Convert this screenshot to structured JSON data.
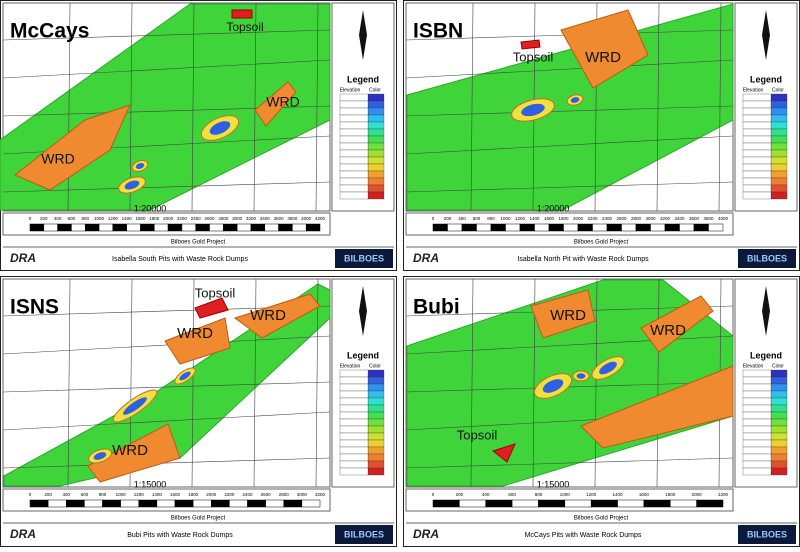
{
  "panels": [
    {
      "title": "McCays",
      "labels": [
        "Topsoil",
        "WRD",
        "WRD"
      ],
      "legend": "Legend",
      "legend_header": [
        "Elevation",
        "Color"
      ],
      "scale": "1:20000",
      "scale_ticks": [
        0,
        200,
        400,
        600,
        800,
        1000,
        1200,
        1400,
        1600,
        1800,
        2000,
        2200,
        2400,
        2600,
        2800,
        3000,
        3200,
        3400,
        3600,
        3800,
        4000,
        4200
      ],
      "project": "Bilboes Gold Project",
      "caption": "Isabella South Pits with Waste Rock Dumps",
      "logo": "DRA",
      "brand": "BILBOES"
    },
    {
      "title": "ISBN",
      "labels": [
        "Topsoil",
        "WRD"
      ],
      "legend": "Legend",
      "legend_header": [
        "Elevation",
        "Color"
      ],
      "scale": "1:20000",
      "scale_ticks": [
        0,
        200,
        400,
        600,
        800,
        1000,
        1200,
        1400,
        1600,
        1800,
        2000,
        2200,
        2400,
        2600,
        2800,
        3000,
        3200,
        3400,
        3600,
        3800,
        4000
      ],
      "project": "Bilboes Gold Project",
      "caption": "Isabella North Pit with Waste Rock Dumps",
      "logo": "DRA",
      "brand": "BILBOES"
    },
    {
      "title": "ISNS",
      "labels": [
        "Topsoil",
        "WRD",
        "WRD",
        "WRD"
      ],
      "legend": "Legend",
      "legend_header": [
        "Elevation",
        "Color"
      ],
      "scale": "1:15000",
      "scale_ticks": [
        0,
        200,
        400,
        600,
        800,
        1000,
        1200,
        1400,
        1600,
        1800,
        2000,
        2200,
        2400,
        2600,
        2800,
        3000,
        3200
      ],
      "project": "Bilboes Gold Project",
      "caption": "Bubi Pits with Waste Rock Dumps",
      "logo": "DRA",
      "brand": "BILBOES"
    },
    {
      "title": "Bubi",
      "labels": [
        "WRD",
        "WRD",
        "Topsoil"
      ],
      "legend": "Legend",
      "legend_header": [
        "Elevation",
        "Color"
      ],
      "scale": "1:15000",
      "scale_ticks": [
        0,
        200,
        400,
        600,
        800,
        1000,
        1200,
        1400,
        1600,
        1800,
        2000,
        2200
      ],
      "project": "Bilboes Gold Project",
      "caption": "McCays Pits with Waste Rock Dumps",
      "logo": "DRA",
      "brand": "BILBOES"
    }
  ]
}
